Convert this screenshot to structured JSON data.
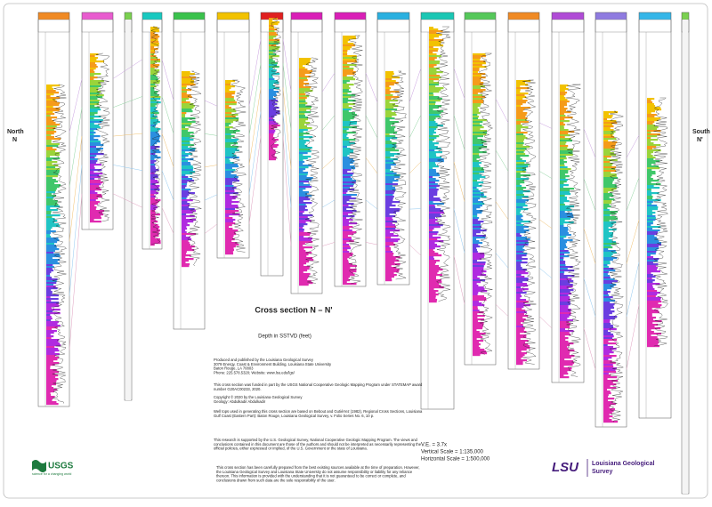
{
  "header": {
    "north": "North",
    "north_label": "N",
    "south": "South",
    "south_label": "N'"
  },
  "title": "Cross section N – N'",
  "subtitle": "Depth in SSTVD (feet)",
  "credits": [
    [
      "Produced and published by the Louisiana Geological Survey",
      "3079 Energy, Coast & Environment Building, Louisiana State University",
      "Baton Rouge, LA 70803",
      "Phone: 225.578.5320; Website: www.lsu.edu/lgs/"
    ],
    [
      "This cross section was funded in part by the USGS National Cooperative Geologic Mapping Program under STATEMAP award",
      "number G20AC00233, 2020."
    ],
    [
      "Copyright © 2020 by the Louisiana Geological Survey",
      "Geology: Abdulkadir Abdulkadir"
    ],
    [
      "Well tops used in generating this cross section are based on Bebout and Gutiérrez (1982), Regional Cross Sections, Louisiana",
      "Gulf Coast (Eastern Part): Baton Rouge, Louisiana Geological Survey, v. Folio Series No. 6, 10 p."
    ],
    [
      "This research is supported by the U.S. Geological Survey, National Cooperative Geologic Mapping Program. The views and",
      "conclusions contained in this document are those of the authors and should not be interpreted as necessarily representing the",
      "official policies, either expressed or implied, of the U.S. Government or the state of Louisiana."
    ]
  ],
  "scale": [
    "V.E. = 3.7x",
    "Vertical Scale = 1:135,000",
    "Horizontal Scale = 1:500,000"
  ],
  "disclaimer": [
    "This cross section has been carefully prepared from the best existing sources available at the time of preparation. However,",
    "the Louisiana Geological Survey and Louisiana State University do not assume responsibility or liability for any reliance",
    "thereon. This information is provided with the understanding that it is not guaranteed to be correct or complete, and",
    "conclusions drawn from such data are the sole responsibility of the user."
  ],
  "usgs": {
    "name": "USGS",
    "tagline": "science for a changing world"
  },
  "lsu": {
    "name": "LSU",
    "org": [
      "Louisiana Geological",
      "Survey"
    ]
  }
}
